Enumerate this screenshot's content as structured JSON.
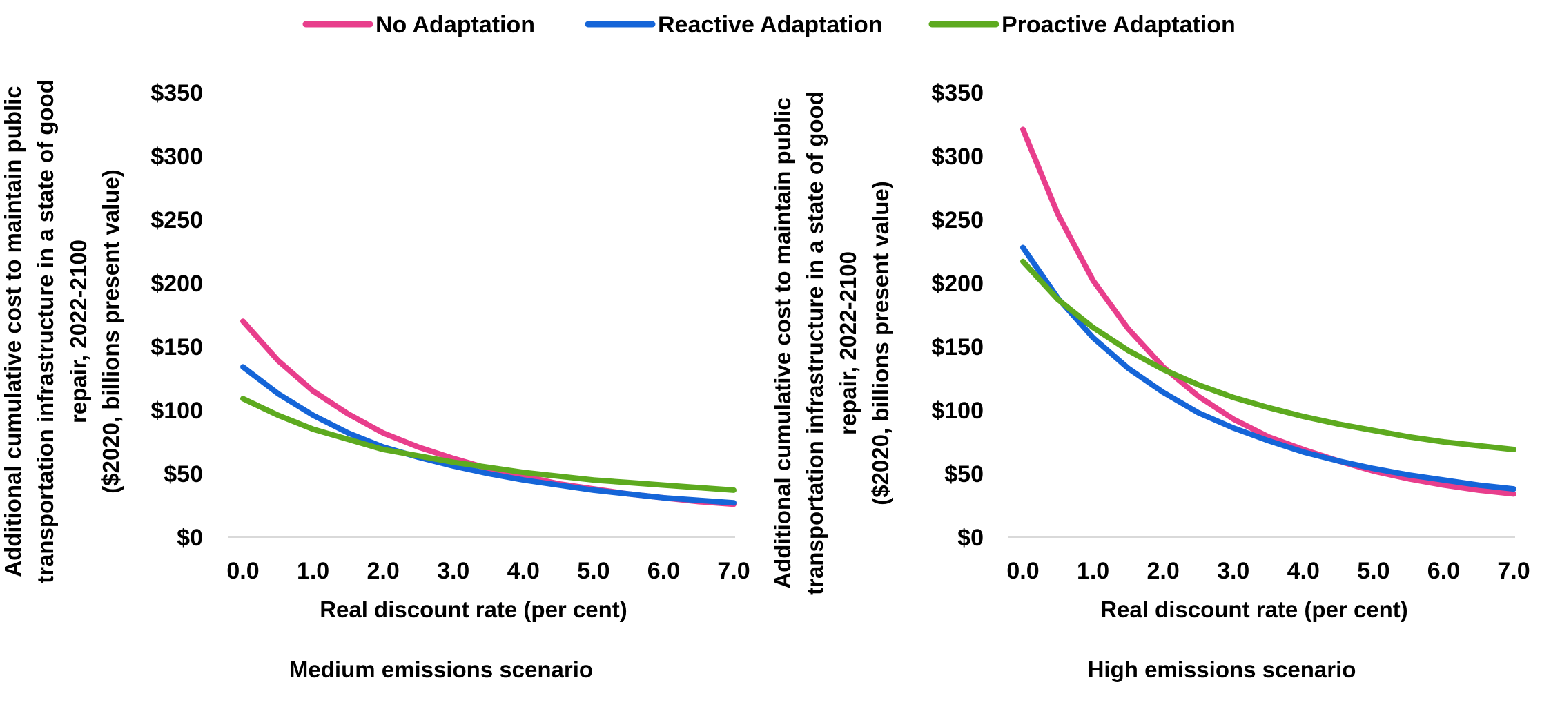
{
  "legend": [
    {
      "name": "No Adaptation",
      "color": "#E83E8C"
    },
    {
      "name": "Reactive Adaptation",
      "color": "#1565D8"
    },
    {
      "name": "Proactive Adaptation",
      "color": "#5DAA1F"
    }
  ],
  "chart_data": [
    {
      "type": "line",
      "scenario_label": "Medium emissions scenario",
      "xlabel": "Real discount rate (per cent)",
      "ylabel_lines": [
        "Additional cumulative cost to maintain public",
        "transportation infrastructure in a state of good",
        "repair, 2022-2100",
        "($2020, billions present value)"
      ],
      "x_tick_labels": [
        "0.0",
        "1.0",
        "2.0",
        "3.0",
        "4.0",
        "5.0",
        "6.0",
        "7.0"
      ],
      "y_tick_labels": [
        "$0",
        "$50",
        "$100",
        "$150",
        "$200",
        "$250",
        "$300",
        "$350"
      ],
      "xlim": [
        0,
        7
      ],
      "ylim": [
        0,
        350
      ],
      "x": [
        0,
        0.5,
        1,
        1.5,
        2,
        2.5,
        3,
        3.5,
        4,
        4.5,
        5,
        5.5,
        6,
        6.5,
        7
      ],
      "series": [
        {
          "name": "No Adaptation",
          "color": "#E83E8C",
          "values": [
            170,
            139,
            115,
            97,
            82,
            71,
            62,
            54,
            48,
            42,
            38,
            34,
            31,
            28,
            26
          ]
        },
        {
          "name": "Reactive Adaptation",
          "color": "#1565D8",
          "values": [
            134,
            113,
            96,
            82,
            71,
            63,
            56,
            50,
            45,
            41,
            37,
            34,
            31,
            29,
            27
          ]
        },
        {
          "name": "Proactive Adaptation",
          "color": "#5DAA1F",
          "values": [
            109,
            96,
            85,
            77,
            69,
            64,
            59,
            55,
            51,
            48,
            45,
            43,
            41,
            39,
            37
          ]
        }
      ]
    },
    {
      "type": "line",
      "scenario_label": "High emissions scenario",
      "xlabel": "Real discount rate (per cent)",
      "ylabel_lines": [
        "Additional cumulative cost to maintain public",
        "transportation infrastructure in a state of good",
        "repair, 2022-2100",
        "($2020, billions present value)"
      ],
      "x_tick_labels": [
        "0.0",
        "1.0",
        "2.0",
        "3.0",
        "4.0",
        "5.0",
        "6.0",
        "7.0"
      ],
      "y_tick_labels": [
        "$0",
        "$50",
        "$100",
        "$150",
        "$200",
        "$250",
        "$300",
        "$350"
      ],
      "xlim": [
        0,
        7
      ],
      "ylim": [
        0,
        350
      ],
      "x": [
        0,
        0.5,
        1,
        1.5,
        2,
        2.5,
        3,
        3.5,
        4,
        4.5,
        5,
        5.5,
        6,
        6.5,
        7
      ],
      "series": [
        {
          "name": "No Adaptation",
          "color": "#E83E8C",
          "values": [
            321,
            254,
            202,
            164,
            134,
            111,
            93,
            79,
            69,
            60,
            52,
            46,
            41,
            37,
            34
          ]
        },
        {
          "name": "Reactive Adaptation",
          "color": "#1565D8",
          "values": [
            228,
            188,
            157,
            133,
            114,
            98,
            86,
            76,
            67,
            60,
            54,
            49,
            45,
            41,
            38
          ]
        },
        {
          "name": "Proactive Adaptation",
          "color": "#5DAA1F",
          "values": [
            217,
            187,
            165,
            147,
            132,
            120,
            110,
            102,
            95,
            89,
            84,
            79,
            75,
            72,
            69
          ]
        }
      ]
    }
  ]
}
